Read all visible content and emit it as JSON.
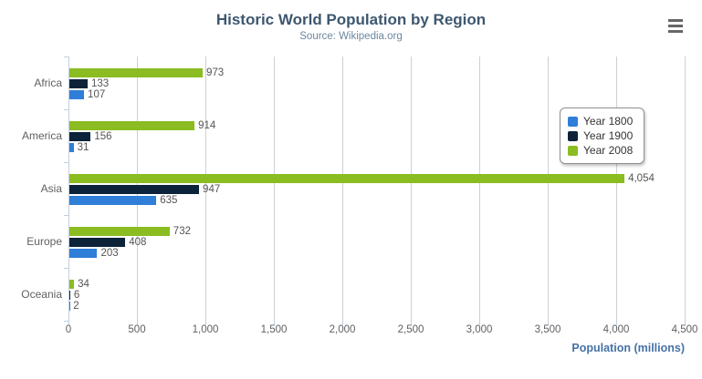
{
  "chart_data": {
    "type": "bar",
    "orientation": "horizontal",
    "title": "Historic World Population by Region",
    "subtitle": "Source: Wikipedia.org",
    "categories": [
      "Africa",
      "America",
      "Asia",
      "Europe",
      "Oceania"
    ],
    "series": [
      {
        "name": "Year 1800",
        "color": "#2f7ed8",
        "values": [
          107,
          31,
          635,
          203,
          2
        ]
      },
      {
        "name": "Year 1900",
        "color": "#0d233a",
        "values": [
          133,
          156,
          947,
          408,
          6
        ]
      },
      {
        "name": "Year 2008",
        "color": "#8bbc21",
        "values": [
          973,
          914,
          4054,
          732,
          34
        ]
      }
    ],
    "bar_display_order_top_to_bottom": [
      "Year 2008",
      "Year 1900",
      "Year 1800"
    ],
    "data_labels": [
      "973",
      "133",
      "107",
      "914",
      "156",
      "31",
      "4,054",
      "947",
      "635",
      "732",
      "408",
      "203",
      "34",
      "6",
      "2"
    ],
    "xlabel": "Population (millions)",
    "xlim": [
      0,
      4500
    ],
    "x_ticks": [
      0,
      500,
      1000,
      1500,
      2000,
      2500,
      3000,
      3500,
      4000,
      4500
    ],
    "x_tick_labels": [
      "0",
      "500",
      "1,000",
      "1,500",
      "2,000",
      "2,500",
      "3,000",
      "3,500",
      "4,000",
      "4,500"
    ],
    "grid": "vertical-gridlines-on",
    "legend_position": "right-overlay",
    "legend_entries": [
      "Year 1800",
      "Year 1900",
      "Year 2008"
    ]
  },
  "menu": {
    "icon": "hamburger-icon"
  },
  "colors": {
    "title": "#3e576f",
    "subtitle": "#6d869f",
    "axis_title": "#4572a7",
    "axis_labels": "#606060",
    "data_labels": "#555555",
    "gridline": "#d0d0d0",
    "axis_line": "#c0d0e0",
    "legend_border": "#909090",
    "menu_icon": "#666666"
  }
}
